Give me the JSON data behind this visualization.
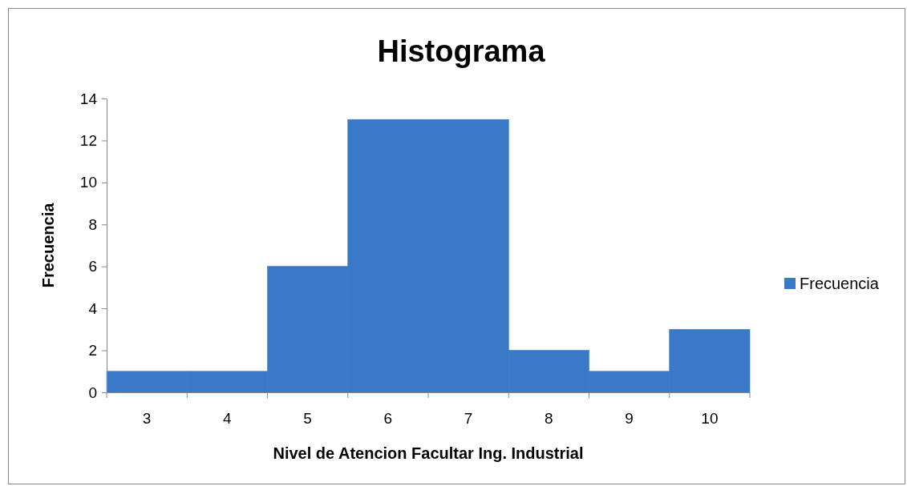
{
  "chart_data": {
    "type": "bar",
    "title": "Histograma",
    "xlabel": "Nivel de Atencion Facultar Ing. Industrial",
    "ylabel": "Frecuencia",
    "categories": [
      "3",
      "4",
      "5",
      "6",
      "7",
      "8",
      "9",
      "10"
    ],
    "series": [
      {
        "name": "Frecuencia",
        "color": "#3a78c8",
        "values": [
          1,
          1,
          6,
          13,
          13,
          2,
          1,
          3
        ]
      }
    ],
    "ylim": [
      0,
      14
    ],
    "yticks": [
      0,
      2,
      4,
      6,
      8,
      10,
      12,
      14
    ],
    "legend": "right"
  }
}
